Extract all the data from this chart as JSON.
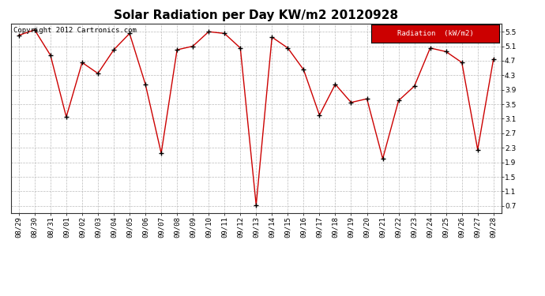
{
  "title": "Solar Radiation per Day KW/m2 20120928",
  "copyright_text": "Copyright 2012 Cartronics.com",
  "legend_label": "Radiation  (kW/m2)",
  "dates": [
    "08/29",
    "08/30",
    "08/31",
    "09/01",
    "09/02",
    "09/03",
    "09/04",
    "09/05",
    "09/06",
    "09/07",
    "09/08",
    "09/09",
    "09/10",
    "09/11",
    "09/12",
    "09/13",
    "09/14",
    "09/15",
    "09/16",
    "09/17",
    "09/18",
    "09/19",
    "09/20",
    "09/21",
    "09/22",
    "09/23",
    "09/24",
    "09/25",
    "09/26",
    "09/27",
    "09/28"
  ],
  "values": [
    5.4,
    5.55,
    4.85,
    3.15,
    4.65,
    4.35,
    5.0,
    5.45,
    4.05,
    2.15,
    5.0,
    5.1,
    5.5,
    5.45,
    5.05,
    0.72,
    5.35,
    5.05,
    4.45,
    3.2,
    4.05,
    3.55,
    3.65,
    2.0,
    3.6,
    4.0,
    5.05,
    4.95,
    4.65,
    2.25,
    4.75
  ],
  "ylim": [
    0.5,
    5.72
  ],
  "yticks": [
    0.7,
    1.1,
    1.5,
    1.9,
    2.3,
    2.7,
    3.1,
    3.5,
    3.9,
    4.3,
    4.7,
    5.1,
    5.5
  ],
  "line_color": "#cc0000",
  "marker_color": "#000000",
  "bg_color": "#ffffff",
  "plot_bg_color": "#ffffff",
  "grid_color": "#bbbbbb",
  "legend_bg": "#cc0000",
  "legend_text_color": "#ffffff",
  "title_fontsize": 11,
  "axis_fontsize": 6.5,
  "copyright_fontsize": 6.5
}
